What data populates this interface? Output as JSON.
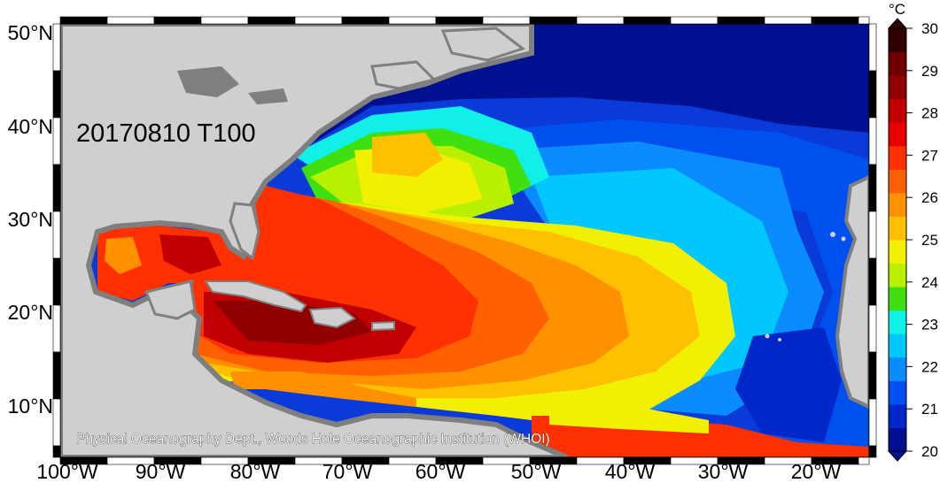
{
  "map": {
    "date_label": "20170810 T100",
    "credit": "Physical Oceanography Dept., Woods Hole Oceanographic Institution (WHOI)",
    "lon_labels": [
      "100°W",
      "90°W",
      "80°W",
      "70°W",
      "60°W",
      "50°W",
      "40°W",
      "30°W",
      "20°W"
    ],
    "lat_labels": [
      "50°N",
      "40°N",
      "30°N",
      "20°N",
      "10°N"
    ],
    "land_color": "#cfcfcf",
    "coast_color": "#7f7f7f"
  },
  "colorbar": {
    "unit": "°C",
    "labels": [
      "30",
      "29",
      "28",
      "27",
      "26",
      "25",
      "24",
      "23",
      "22",
      "21",
      "20"
    ],
    "colors": [
      "#001090",
      "#0028c8",
      "#0050f0",
      "#0a8cff",
      "#00c8ff",
      "#10f0e8",
      "#40e010",
      "#b8f000",
      "#f0f000",
      "#ffc000",
      "#ff9000",
      "#ff6000",
      "#ff3000",
      "#e80000",
      "#c00000",
      "#900000",
      "#700000",
      "#300000"
    ]
  }
}
